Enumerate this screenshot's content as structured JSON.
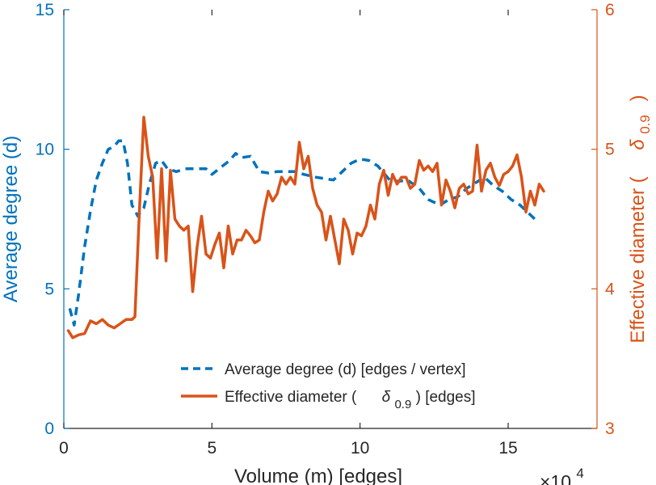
{
  "chart_data": {
    "type": "line",
    "title": "",
    "xlabel": "Volume (m) [edges]",
    "x_exponent_base": "×10",
    "x_exponent_power": "4",
    "xlim": [
      0,
      18
    ],
    "xticks": [
      0,
      5,
      10,
      15
    ],
    "xtick_labels": [
      "0",
      "5",
      "10",
      "15"
    ],
    "yleft": {
      "label": "Average degree (d)",
      "lim": [
        0,
        15
      ],
      "ticks": [
        0,
        5,
        10,
        15
      ],
      "tick_labels": [
        "0",
        "5",
        "10",
        "15"
      ],
      "color": "#0072BD"
    },
    "yright": {
      "label_main": "Effective diameter (",
      "label_symbol": "δ",
      "label_sub": "0.9",
      "label_close": ")",
      "lim": [
        3,
        6
      ],
      "ticks": [
        3,
        4,
        5,
        6
      ],
      "tick_labels": [
        "3",
        "4",
        "5",
        "6"
      ],
      "color": "#D95319"
    },
    "legend": {
      "placement": "bottom-right",
      "entries": [
        {
          "text": "Average degree (d) [edges / vertex]"
        },
        {
          "text_main": "Effective diameter (",
          "symbol": "δ",
          "sub": "0.9",
          "close": ") [edges]"
        }
      ]
    },
    "grid": false,
    "series": [
      {
        "axis": "left",
        "style": "dashed",
        "color": "#0072BD",
        "x": [
          0.2,
          0.35,
          0.5,
          0.7,
          0.9,
          1.1,
          1.3,
          1.5,
          1.7,
          1.85,
          2.0,
          2.15,
          2.3,
          2.5,
          2.7,
          2.9,
          3.1,
          3.3,
          3.5,
          3.8,
          4.1,
          4.5,
          4.8,
          5.0,
          5.3,
          5.6,
          5.8,
          6.0,
          6.3,
          6.6,
          6.9,
          7.2,
          7.5,
          7.8,
          8.1,
          8.5,
          8.8,
          9.1,
          9.4,
          9.7,
          10.0,
          10.3,
          10.6,
          11.0,
          11.3,
          11.6,
          12.0,
          12.3,
          12.7,
          13.0,
          13.3,
          13.6,
          13.9,
          14.2,
          14.5,
          14.8,
          15.1,
          15.4,
          15.7,
          16.0
        ],
        "values": [
          4.3,
          3.7,
          4.8,
          6.5,
          7.8,
          8.9,
          9.5,
          10.0,
          10.1,
          10.3,
          10.3,
          9.5,
          8.0,
          7.6,
          7.9,
          8.8,
          9.5,
          9.6,
          9.3,
          9.2,
          9.3,
          9.3,
          9.3,
          9.1,
          9.35,
          9.6,
          9.85,
          9.7,
          9.75,
          9.2,
          9.15,
          9.2,
          9.2,
          9.2,
          9.1,
          9.0,
          8.95,
          8.9,
          9.2,
          9.5,
          9.65,
          9.6,
          9.4,
          8.9,
          8.85,
          8.9,
          8.6,
          8.2,
          8.0,
          8.2,
          8.3,
          8.6,
          8.8,
          9.0,
          8.7,
          8.5,
          8.2,
          8.0,
          7.7,
          7.4
        ]
      },
      {
        "axis": "right",
        "style": "solid",
        "color": "#D95319",
        "x": [
          0.15,
          0.3,
          0.5,
          0.7,
          0.9,
          1.1,
          1.3,
          1.5,
          1.7,
          1.9,
          2.1,
          2.3,
          2.4,
          2.55,
          2.7,
          2.85,
          3.0,
          3.15,
          3.3,
          3.45,
          3.6,
          3.75,
          3.9,
          4.05,
          4.2,
          4.35,
          4.5,
          4.65,
          4.8,
          4.95,
          5.1,
          5.25,
          5.4,
          5.55,
          5.7,
          5.85,
          6.0,
          6.15,
          6.3,
          6.45,
          6.6,
          6.75,
          6.9,
          7.05,
          7.2,
          7.35,
          7.5,
          7.65,
          7.8,
          7.95,
          8.1,
          8.25,
          8.4,
          8.55,
          8.7,
          8.85,
          9.0,
          9.15,
          9.3,
          9.45,
          9.6,
          9.75,
          9.9,
          10.05,
          10.2,
          10.35,
          10.5,
          10.65,
          10.8,
          10.95,
          11.1,
          11.25,
          11.4,
          11.55,
          11.7,
          11.85,
          12.0,
          12.15,
          12.3,
          12.45,
          12.6,
          12.75,
          12.9,
          13.05,
          13.2,
          13.35,
          13.5,
          13.65,
          13.8,
          13.95,
          14.1,
          14.25,
          14.4,
          14.55,
          14.7,
          14.85,
          15.0,
          15.15,
          15.3,
          15.45,
          15.6,
          15.75,
          15.9,
          16.05,
          16.2
        ],
        "values": [
          3.7,
          3.65,
          3.67,
          3.68,
          3.77,
          3.75,
          3.78,
          3.74,
          3.72,
          3.75,
          3.78,
          3.78,
          3.8,
          4.55,
          5.23,
          4.95,
          4.8,
          4.22,
          4.86,
          4.2,
          4.85,
          4.5,
          4.45,
          4.42,
          4.45,
          3.98,
          4.3,
          4.52,
          4.25,
          4.22,
          4.32,
          4.4,
          4.15,
          4.45,
          4.25,
          4.35,
          4.35,
          4.42,
          4.38,
          4.33,
          4.35,
          4.55,
          4.7,
          4.63,
          4.68,
          4.8,
          4.75,
          4.8,
          4.75,
          5.05,
          4.86,
          4.95,
          4.72,
          4.6,
          4.55,
          4.35,
          4.52,
          4.35,
          4.18,
          4.5,
          4.42,
          4.25,
          4.4,
          4.38,
          4.45,
          4.6,
          4.5,
          4.75,
          4.85,
          4.67,
          4.82,
          4.75,
          4.8,
          4.8,
          4.72,
          4.75,
          4.92,
          4.85,
          4.88,
          4.84,
          4.9,
          4.6,
          4.78,
          4.7,
          4.58,
          4.72,
          4.75,
          4.68,
          4.7,
          5.03,
          4.7,
          4.85,
          4.9,
          4.8,
          4.74,
          4.82,
          4.84,
          4.88,
          4.96,
          4.8,
          4.55,
          4.7,
          4.6,
          4.75,
          4.7
        ]
      }
    ]
  }
}
